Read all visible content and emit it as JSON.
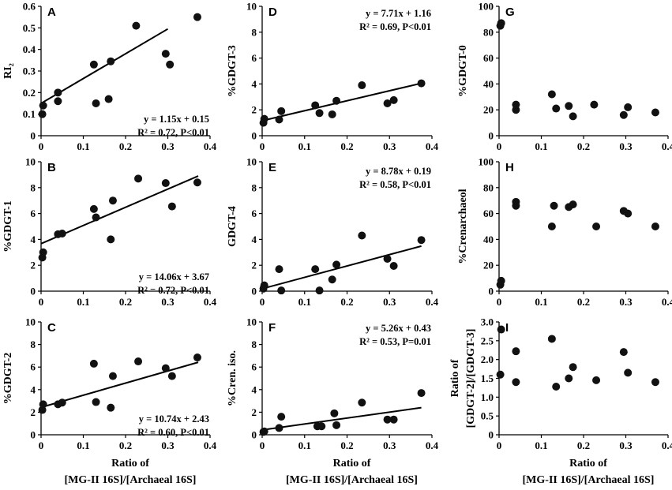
{
  "chart_data": [
    {
      "id": "A",
      "type": "scatter",
      "letter": "A",
      "ylabel": "RI₂",
      "xlim": [
        0,
        0.4
      ],
      "ylim": [
        0,
        0.6
      ],
      "yticks": [
        "0",
        "0.1",
        "0.2",
        "0.3",
        "0.4",
        "0.5",
        "0.6"
      ],
      "points": [
        [
          0.003,
          0.1
        ],
        [
          0.005,
          0.14
        ],
        [
          0.04,
          0.16
        ],
        [
          0.04,
          0.2
        ],
        [
          0.125,
          0.33
        ],
        [
          0.13,
          0.15
        ],
        [
          0.16,
          0.17
        ],
        [
          0.165,
          0.345
        ],
        [
          0.225,
          0.51
        ],
        [
          0.295,
          0.38
        ],
        [
          0.305,
          0.33
        ],
        [
          0.37,
          0.55
        ]
      ],
      "fit": {
        "slope": 1.15,
        "intercept": 0.15
      },
      "equation": "y = 1.15x + 0.15",
      "stats": "R² = 0.72, P<0.01",
      "eq_pos": "bottom-right"
    },
    {
      "id": "B",
      "type": "scatter",
      "letter": "B",
      "ylabel": "%GDGT-1",
      "xlim": [
        0,
        0.4
      ],
      "ylim": [
        0,
        10
      ],
      "yticks": [
        "0",
        "2",
        "4",
        "6",
        "8",
        "10"
      ],
      "points": [
        [
          0.003,
          2.6
        ],
        [
          0.005,
          3.0
        ],
        [
          0.04,
          4.4
        ],
        [
          0.05,
          4.45
        ],
        [
          0.125,
          6.35
        ],
        [
          0.13,
          5.7
        ],
        [
          0.165,
          4.0
        ],
        [
          0.17,
          7.0
        ],
        [
          0.23,
          8.7
        ],
        [
          0.295,
          8.35
        ],
        [
          0.31,
          6.55
        ],
        [
          0.37,
          8.4
        ]
      ],
      "fit": {
        "slope": 14.06,
        "intercept": 3.67
      },
      "equation": "y = 14.06x + 3.67",
      "stats": "R² = 0.72, P<0.01",
      "eq_pos": "bottom-right"
    },
    {
      "id": "C",
      "type": "scatter",
      "letter": "C",
      "ylabel": "%GDGT-2",
      "xlim": [
        0,
        0.4
      ],
      "ylim": [
        0,
        10
      ],
      "yticks": [
        "0",
        "2",
        "4",
        "6",
        "8",
        "10"
      ],
      "points": [
        [
          0.003,
          2.2
        ],
        [
          0.005,
          2.7
        ],
        [
          0.04,
          2.7
        ],
        [
          0.05,
          2.85
        ],
        [
          0.125,
          6.3
        ],
        [
          0.13,
          2.9
        ],
        [
          0.165,
          2.4
        ],
        [
          0.17,
          5.2
        ],
        [
          0.23,
          6.5
        ],
        [
          0.295,
          5.9
        ],
        [
          0.31,
          5.2
        ],
        [
          0.37,
          6.85
        ]
      ],
      "fit": {
        "slope": 10.74,
        "intercept": 2.43
      },
      "equation": "y = 10.74x + 2.43",
      "stats": "R² = 0.60, P<0.01",
      "eq_pos": "bottom-right"
    },
    {
      "id": "D",
      "type": "scatter",
      "letter": "D",
      "ylabel": "%GDGT-3",
      "xlim": [
        0,
        0.4
      ],
      "ylim": [
        0,
        10
      ],
      "yticks": [
        "0",
        "2",
        "4",
        "6",
        "8",
        "10"
      ],
      "points": [
        [
          0.003,
          1.0
        ],
        [
          0.005,
          1.3
        ],
        [
          0.04,
          1.25
        ],
        [
          0.045,
          1.9
        ],
        [
          0.125,
          2.35
        ],
        [
          0.135,
          1.75
        ],
        [
          0.165,
          1.65
        ],
        [
          0.175,
          2.7
        ],
        [
          0.235,
          3.9
        ],
        [
          0.295,
          2.5
        ],
        [
          0.31,
          2.75
        ],
        [
          0.375,
          4.05
        ]
      ],
      "fit": {
        "slope": 7.71,
        "intercept": 1.16
      },
      "equation": "y = 7.71x + 1.16",
      "stats": "R² = 0.69, P<0.01",
      "eq_pos": "top-right"
    },
    {
      "id": "E",
      "type": "scatter",
      "letter": "E",
      "ylabel": "GDGT-4",
      "xlim": [
        0,
        0.4
      ],
      "ylim": [
        0,
        10
      ],
      "yticks": [
        "0",
        "2",
        "4",
        "6",
        "8",
        "10"
      ],
      "points": [
        [
          0.003,
          0.2
        ],
        [
          0.005,
          0.45
        ],
        [
          0.04,
          1.7
        ],
        [
          0.045,
          0.05
        ],
        [
          0.125,
          1.7
        ],
        [
          0.135,
          0.05
        ],
        [
          0.165,
          0.9
        ],
        [
          0.175,
          2.05
        ],
        [
          0.235,
          4.3
        ],
        [
          0.295,
          2.5
        ],
        [
          0.31,
          1.95
        ],
        [
          0.375,
          3.95
        ]
      ],
      "fit": {
        "slope": 8.78,
        "intercept": 0.19
      },
      "equation": "y = 8.78x + 0.19",
      "stats": "R² = 0.58, P<0.01",
      "eq_pos": "top-right"
    },
    {
      "id": "F",
      "type": "scatter",
      "letter": "F",
      "ylabel": "%Cren. iso.",
      "xlim": [
        0,
        0.4
      ],
      "ylim": [
        0,
        10
      ],
      "yticks": [
        "0",
        "2",
        "4",
        "6",
        "8",
        "10"
      ],
      "points": [
        [
          0.003,
          0.25
        ],
        [
          0.005,
          0.3
        ],
        [
          0.04,
          0.6
        ],
        [
          0.045,
          1.6
        ],
        [
          0.13,
          0.75
        ],
        [
          0.14,
          0.75
        ],
        [
          0.17,
          1.9
        ],
        [
          0.175,
          0.85
        ],
        [
          0.235,
          2.85
        ],
        [
          0.295,
          1.35
        ],
        [
          0.31,
          1.35
        ],
        [
          0.375,
          3.7
        ]
      ],
      "fit": {
        "slope": 5.26,
        "intercept": 0.43
      },
      "equation": "y = 5.26x + 0.43",
      "stats": "R² = 0.53, P=0.01",
      "eq_pos": "top-right"
    },
    {
      "id": "G",
      "type": "scatter",
      "letter": "G",
      "ylabel": "%GDGT-0",
      "xlim": [
        0,
        0.4
      ],
      "ylim": [
        0,
        100
      ],
      "yticks": [
        "0",
        "20",
        "40",
        "60",
        "80",
        "100"
      ],
      "points": [
        [
          0.003,
          85
        ],
        [
          0.005,
          87
        ],
        [
          0.04,
          20
        ],
        [
          0.04,
          24
        ],
        [
          0.125,
          32
        ],
        [
          0.135,
          21
        ],
        [
          0.165,
          23
        ],
        [
          0.175,
          15
        ],
        [
          0.225,
          24
        ],
        [
          0.295,
          16
        ],
        [
          0.305,
          22
        ],
        [
          0.37,
          18
        ]
      ]
    },
    {
      "id": "H",
      "type": "scatter",
      "letter": "H",
      "ylabel": "%Crenarchaeol",
      "xlim": [
        0,
        0.4
      ],
      "ylim": [
        0,
        100
      ],
      "yticks": [
        "0",
        "20",
        "40",
        "60",
        "80",
        "100"
      ],
      "points": [
        [
          0.003,
          5
        ],
        [
          0.005,
          8
        ],
        [
          0.04,
          66
        ],
        [
          0.04,
          69
        ],
        [
          0.125,
          50
        ],
        [
          0.13,
          66
        ],
        [
          0.165,
          65
        ],
        [
          0.175,
          67
        ],
        [
          0.23,
          50
        ],
        [
          0.295,
          62
        ],
        [
          0.305,
          60
        ],
        [
          0.37,
          50
        ]
      ]
    },
    {
      "id": "I",
      "type": "scatter",
      "letter": "I",
      "ylabel": [
        "Ratio of",
        "[GDGT-2]/[GDGT-3]"
      ],
      "xlim": [
        0,
        0.4
      ],
      "ylim": [
        0,
        3.0
      ],
      "yticks": [
        "0",
        "0.5",
        "1.0",
        "1.5",
        "2.0",
        "2.5",
        "3.0"
      ],
      "points": [
        [
          0.003,
          1.6
        ],
        [
          0.005,
          2.8
        ],
        [
          0.04,
          2.22
        ],
        [
          0.04,
          1.4
        ],
        [
          0.125,
          2.55
        ],
        [
          0.135,
          1.28
        ],
        [
          0.165,
          1.5
        ],
        [
          0.175,
          1.8
        ],
        [
          0.23,
          1.45
        ],
        [
          0.295,
          2.2
        ],
        [
          0.305,
          1.65
        ],
        [
          0.37,
          1.4
        ]
      ]
    }
  ],
  "xticks": [
    "0",
    "0.1",
    "0.2",
    "0.3",
    "0.4"
  ],
  "xaxis_title": [
    "Ratio of",
    "[MG-II 16S]/[Archaeal 16S]"
  ]
}
